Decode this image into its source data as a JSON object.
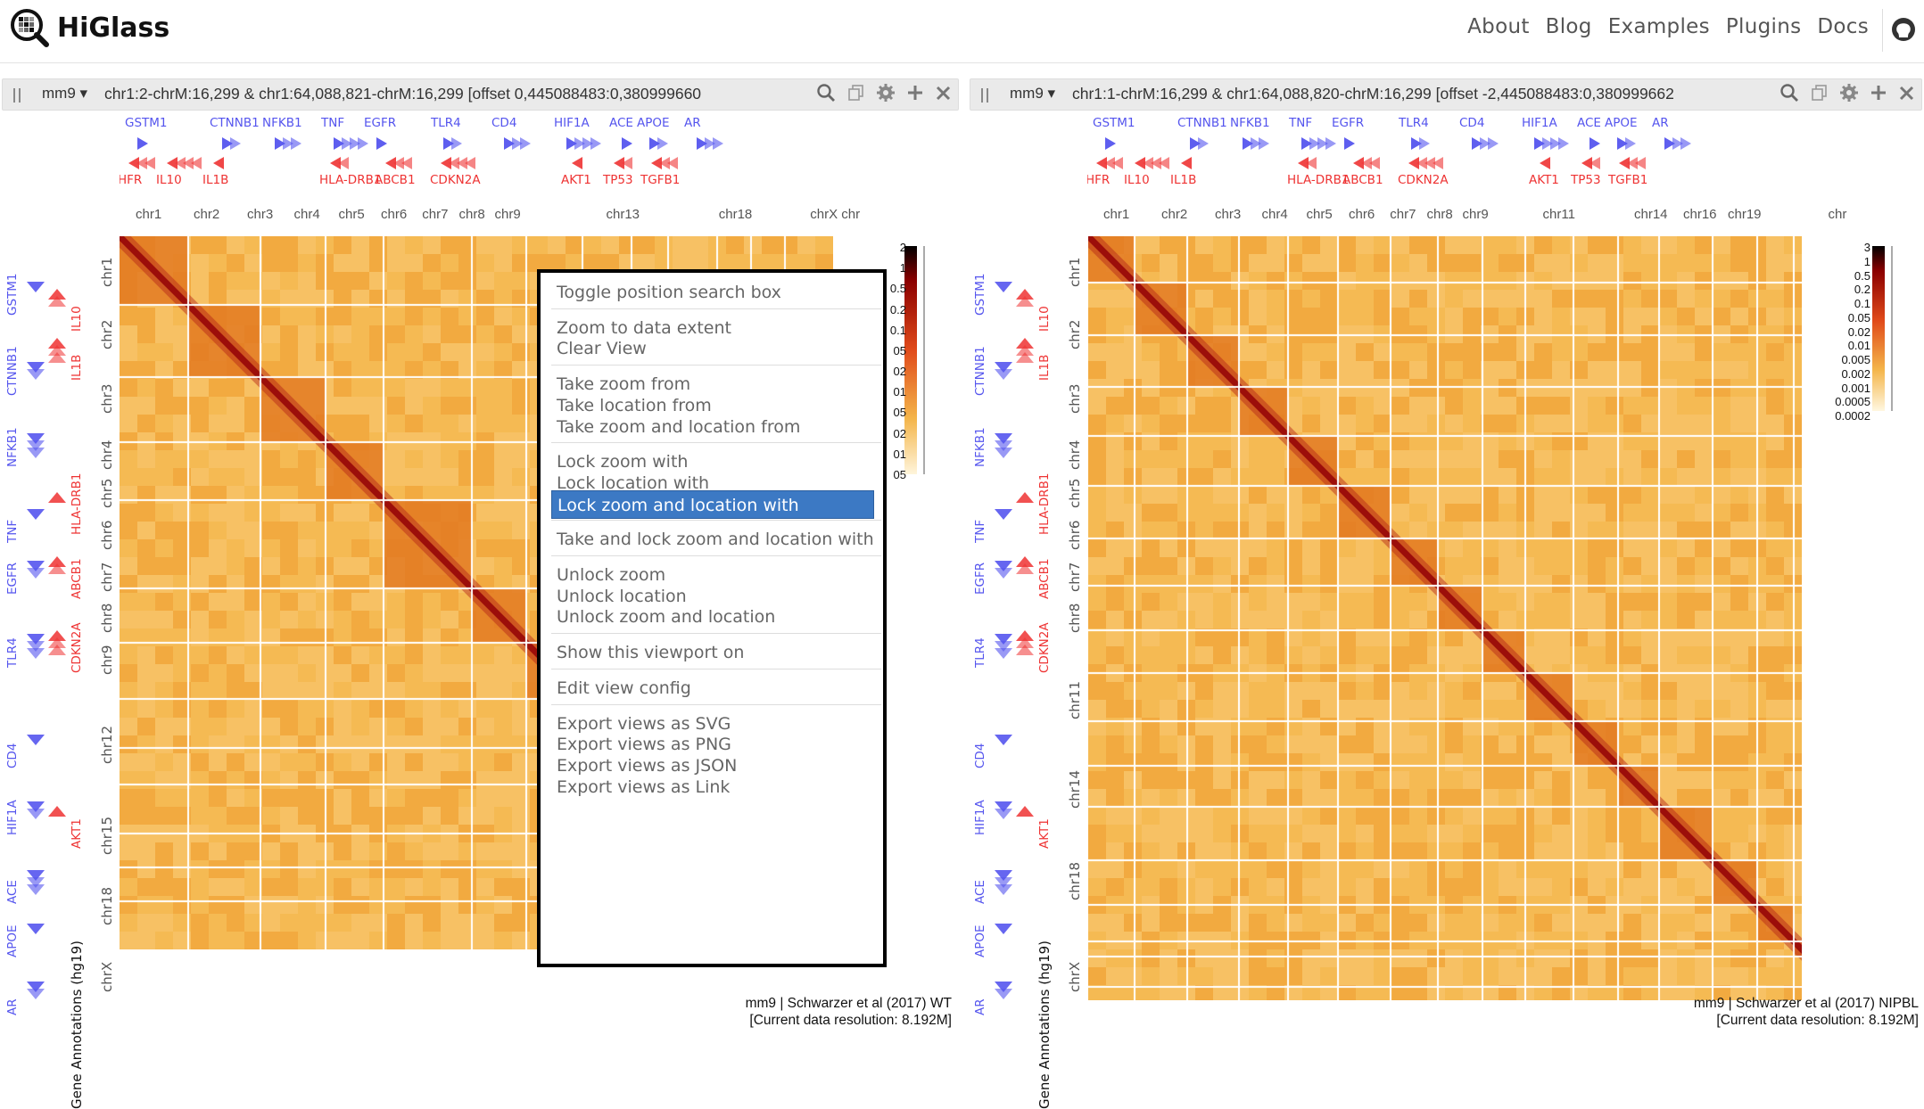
{
  "nav": {
    "brand": "HiGlass",
    "links": [
      "About",
      "Blog",
      "Examples",
      "Plugins",
      "Docs"
    ]
  },
  "colors": {
    "gene_plus": "#5555ee",
    "gene_minus": "#ee3333",
    "menu_highlight": "#3c79c4",
    "heatmap_low": "#fdf0c8",
    "heatmap_high": "#8b0000"
  },
  "views": [
    {
      "assembly": "mm9",
      "locus": "chr1:2-chrM:16,299 & chr1:64,088,821-chrM:16,299 [offset 0,445088483:0,380999660",
      "top_genes_plus": [
        "GSTM1",
        "CTNNB1",
        "NFKB1",
        "TNF",
        "EGFR",
        "TLR4",
        "CD4",
        "HIF1A",
        "ACE",
        "APOE",
        "AR"
      ],
      "top_genes_minus": [
        "HFR",
        "IL10",
        "IL1B",
        "HLA-DRB1",
        "ABCB1",
        "CDKN2A",
        "AKT1",
        "TP53",
        "TGFB1"
      ],
      "chrom_ticks_x": [
        "chr1",
        "chr2",
        "chr3",
        "chr4",
        "chr5",
        "chr6",
        "chr7",
        "chr8",
        "chr9",
        "chr13",
        "chr18",
        "chrX chr"
      ],
      "chrom_ticks_y": [
        "chr1",
        "chr2",
        "chr3",
        "chr4",
        "chr5",
        "chr6",
        "chr7",
        "chr8",
        "chr9",
        "chr12",
        "chr15",
        "chr18",
        "chrX"
      ],
      "left_genes_plus": [
        "GSTM1",
        "CTNNB1",
        "NFKB1",
        "TNF",
        "EGFR",
        "TLR4",
        "CD4",
        "HIF1A",
        "ACE",
        "APOE",
        "AR"
      ],
      "left_genes_minus": [
        "IL10",
        "IL1B",
        "HLA-DRB1",
        "ABCB1",
        "CDKN2A",
        "AKT1"
      ],
      "track_label": "Gene Annotations (hg19)",
      "colorbar_labels": [
        "2",
        "1",
        "0.5",
        "0.2",
        "0.1",
        "05",
        "02",
        "01",
        "05",
        "02",
        "01",
        "05"
      ],
      "footer_line1": "mm9 | Schwarzer et al (2017) WT",
      "footer_line2": "[Current data resolution: 8.192M]"
    },
    {
      "assembly": "mm9",
      "locus": "chr1:1-chrM:16,299 & chr1:64,088,820-chrM:16,299 [offset -2,445088483:0,380999662",
      "top_genes_plus": [
        "GSTM1",
        "CTNNB1",
        "NFKB1",
        "TNF",
        "EGFR",
        "TLR4",
        "CD4",
        "HIF1A",
        "ACE",
        "APOE",
        "AR"
      ],
      "top_genes_minus": [
        "HFR",
        "IL10",
        "IL1B",
        "HLA-DRB1",
        "ABCB1",
        "CDKN2A",
        "AKT1",
        "TP53",
        "TGFB1"
      ],
      "chrom_ticks_x": [
        "chr1",
        "chr2",
        "chr3",
        "chr4",
        "chr5",
        "chr6",
        "chr7",
        "chr8",
        "chr9",
        "chr11",
        "chr14",
        "chr16",
        "chr19",
        "chr"
      ],
      "chrom_ticks_y": [
        "chr1",
        "chr2",
        "chr3",
        "chr4",
        "chr5",
        "chr6",
        "chr7",
        "chr8",
        "chr11",
        "chr14",
        "chr18",
        "chrX"
      ],
      "left_genes_plus": [
        "GSTM1",
        "CTNNB1",
        "NFKB1",
        "TNF",
        "EGFR",
        "TLR4",
        "CD4",
        "HIF1A",
        "ACE",
        "APOE",
        "AR"
      ],
      "left_genes_minus": [
        "IL10",
        "IL1B",
        "HLA-DRB1",
        "ABCB1",
        "CDKN2A",
        "AKT1"
      ],
      "track_label": "Gene Annotations (hg19)",
      "colorbar_labels": [
        "3",
        "1",
        "0.5",
        "0.2",
        "0.1",
        "0.05",
        "0.02",
        "0.01",
        "0.005",
        "0.002",
        "0.001",
        "0.0005",
        "0.0002"
      ],
      "footer_line1": "mm9 | Schwarzer et al (2017) NIPBL",
      "footer_line2": "[Current data resolution: 8.192M]"
    }
  ],
  "context_menu": {
    "groups": [
      [
        "Toggle position search box"
      ],
      [
        "Zoom to data extent",
        "Clear View"
      ],
      [
        "Take zoom from",
        "Take location from",
        "Take zoom and location from"
      ],
      [
        "Lock zoom with",
        "Lock location with",
        "Lock zoom and location with"
      ],
      [
        "Take and lock zoom and location with"
      ],
      [
        "Unlock zoom",
        "Unlock location",
        "Unlock zoom and location"
      ],
      [
        "Show this viewport on"
      ],
      [
        "Edit view config"
      ],
      [
        "Export views as SVG",
        "Export views as PNG",
        "Export views as JSON",
        "Export views as Link"
      ]
    ],
    "highlighted": "Lock zoom and location with"
  }
}
